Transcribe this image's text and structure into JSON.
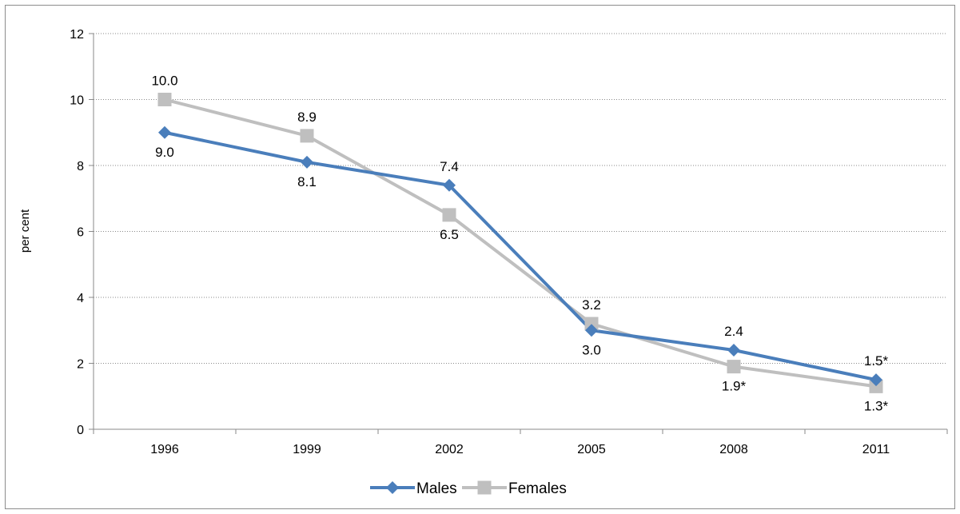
{
  "chart_data": {
    "type": "line",
    "title": "",
    "xlabel": "",
    "ylabel": "per cent",
    "categories": [
      "1996",
      "1999",
      "2002",
      "2005",
      "2008",
      "2011"
    ],
    "ylim": [
      0,
      12
    ],
    "yticks": [
      "0",
      "2",
      "4",
      "6",
      "8",
      "10",
      "12"
    ],
    "grid": "horizontal dotted",
    "legend_position": "bottom",
    "series": [
      {
        "name": "Males",
        "values": [
          9.0,
          8.1,
          7.4,
          3.0,
          2.4,
          1.5
        ],
        "labels": [
          "9.0",
          "8.1",
          "7.4",
          "3.0",
          "2.4",
          "1.5*"
        ],
        "color": "#4a7ebb",
        "marker": "diamond"
      },
      {
        "name": "Females",
        "values": [
          10.0,
          8.9,
          6.5,
          3.2,
          1.9,
          1.3
        ],
        "labels": [
          "10.0",
          "8.9",
          "6.5",
          "3.2",
          "1.9*",
          "1.3*"
        ],
        "color": "#bfbfbf",
        "marker": "square"
      }
    ]
  }
}
